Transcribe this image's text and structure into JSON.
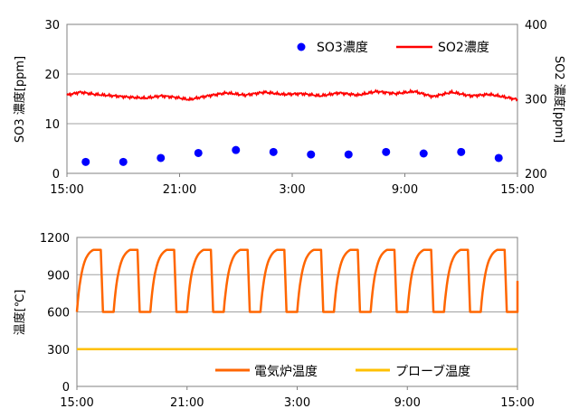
{
  "chart_data": [
    {
      "type": "scatter+line",
      "xlabel": "",
      "x_ticks": [
        "15:00",
        "21:00",
        "3:00",
        "9:00",
        "15:00"
      ],
      "ylabel_left": "SO3 濃度[ppm]",
      "ylabel_right": "SO2 濃度[ppm]",
      "ylim_left": [
        0,
        30
      ],
      "ylim_right": [
        200,
        400
      ],
      "yticks_left": [
        0,
        10,
        20,
        30
      ],
      "yticks_right": [
        200,
        300,
        400
      ],
      "grid": true,
      "legend": "top-right",
      "series": [
        {
          "name": "SO3濃度",
          "axis": "left",
          "kind": "scatter",
          "color": "#0000ff",
          "points": [
            [
              1.0,
              2.3
            ],
            [
              3.0,
              2.3
            ],
            [
              5.0,
              3.1
            ],
            [
              7.0,
              4.1
            ],
            [
              9.0,
              4.7
            ],
            [
              11.0,
              4.3
            ],
            [
              13.0,
              3.8
            ],
            [
              15.0,
              3.8
            ],
            [
              17.0,
              4.3
            ],
            [
              19.0,
              4.0
            ],
            [
              21.0,
              4.3
            ],
            [
              23.0,
              3.1
            ]
          ]
        },
        {
          "name": "SO2濃度",
          "axis": "right",
          "kind": "line",
          "color": "#ff0000",
          "points": [
            [
              0,
              305
            ],
            [
              0.7,
              309
            ],
            [
              1.5,
              306
            ],
            [
              2.5,
              304
            ],
            [
              3.5,
              302
            ],
            [
              4.2,
              301
            ],
            [
              5.0,
              304
            ],
            [
              5.8,
              302
            ],
            [
              6.5,
              299
            ],
            [
              7.5,
              304
            ],
            [
              8.5,
              308
            ],
            [
              9.5,
              305
            ],
            [
              10.5,
              309
            ],
            [
              11.5,
              306
            ],
            [
              12.5,
              307
            ],
            [
              13.5,
              304
            ],
            [
              14.5,
              308
            ],
            [
              15.5,
              305
            ],
            [
              16.5,
              310
            ],
            [
              17.5,
              307
            ],
            [
              18.5,
              310
            ],
            [
              19.5,
              303
            ],
            [
              20.5,
              309
            ],
            [
              21.5,
              304
            ],
            [
              22.5,
              306
            ],
            [
              23.2,
              303
            ],
            [
              24,
              299
            ]
          ]
        }
      ]
    },
    {
      "type": "line",
      "xlabel": "",
      "x_ticks": [
        "15:00",
        "21:00",
        "3:00",
        "9:00",
        "15:00"
      ],
      "ylabel": "温度[℃]",
      "ylim": [
        0,
        1200
      ],
      "yticks": [
        0,
        300,
        600,
        900,
        1200
      ],
      "grid": true,
      "legend": "bottom-right",
      "series": [
        {
          "name": "電気炉温度",
          "kind": "cycle",
          "color": "#ff6600",
          "period_hours": 2,
          "low": 600,
          "high": 1100,
          "cycles_start": [
            0,
            2,
            4,
            6,
            8,
            10,
            12,
            14,
            16,
            18,
            20,
            22
          ]
        },
        {
          "name": "プローブ温度",
          "kind": "line",
          "color": "#ffc000",
          "points": [
            [
              0,
              300
            ],
            [
              24,
              300
            ]
          ]
        }
      ]
    }
  ]
}
